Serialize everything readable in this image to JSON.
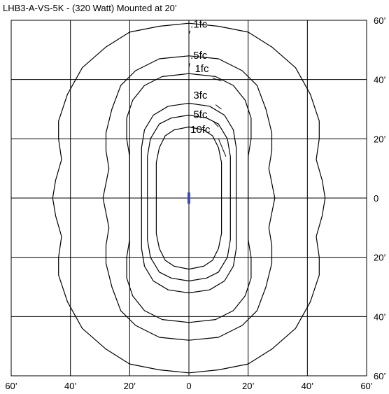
{
  "chart_data": {
    "type": "isofootcandle contour plot",
    "title": "LHB3-A-VS-5K - (320 Watt) Mounted at 20’",
    "x_ticks": [
      "60’",
      "40’",
      "20’",
      "0",
      "20’",
      "40’",
      "60’"
    ],
    "y_ticks": [
      "60’",
      "40’",
      "20’",
      "0",
      "20’",
      "40’",
      "60’"
    ],
    "xlim": [
      -60,
      60
    ],
    "ylim": [
      -60,
      60
    ],
    "grid": true,
    "contour_labels": [
      ".1fc",
      ".5fc",
      "1fc",
      "3fc",
      "5fc",
      "10fc"
    ],
    "contours": [
      {
        "label": ".1fc",
        "points": [
          [
            0,
            59
          ],
          [
            10,
            58
          ],
          [
            20,
            56
          ],
          [
            28,
            51
          ],
          [
            36,
            44
          ],
          [
            41,
            35
          ],
          [
            44,
            26
          ],
          [
            44,
            20
          ],
          [
            43,
            13
          ],
          [
            45,
            6
          ],
          [
            46,
            0
          ],
          [
            45,
            -6
          ],
          [
            43,
            -13
          ],
          [
            44,
            -20
          ],
          [
            44,
            -26
          ],
          [
            41,
            -35
          ],
          [
            36,
            -44
          ],
          [
            28,
            -51
          ],
          [
            20,
            -56
          ],
          [
            10,
            -58
          ],
          [
            0,
            -59
          ],
          [
            -10,
            -58
          ],
          [
            -20,
            -56
          ],
          [
            -28,
            -51
          ],
          [
            -36,
            -44
          ],
          [
            -41,
            -35
          ],
          [
            -44,
            -26
          ],
          [
            -44,
            -20
          ],
          [
            -43,
            -13
          ],
          [
            -45,
            -6
          ],
          [
            -46,
            0
          ],
          [
            -45,
            6
          ],
          [
            -43,
            13
          ],
          [
            -44,
            20
          ],
          [
            -44,
            26
          ],
          [
            -41,
            35
          ],
          [
            -36,
            44
          ],
          [
            -28,
            51
          ],
          [
            -20,
            56
          ],
          [
            -10,
            58
          ]
        ]
      },
      {
        "label": ".5fc",
        "points": [
          [
            0,
            48
          ],
          [
            10,
            47
          ],
          [
            18,
            43
          ],
          [
            23,
            38
          ],
          [
            26,
            30
          ],
          [
            28,
            22
          ],
          [
            28,
            16
          ],
          [
            27,
            10
          ],
          [
            28,
            5
          ],
          [
            29,
            0
          ],
          [
            28,
            -5
          ],
          [
            27,
            -10
          ],
          [
            28,
            -16
          ],
          [
            28,
            -22
          ],
          [
            26,
            -30
          ],
          [
            23,
            -38
          ],
          [
            18,
            -43
          ],
          [
            10,
            -47
          ],
          [
            0,
            -48
          ],
          [
            -10,
            -47
          ],
          [
            -18,
            -43
          ],
          [
            -23,
            -38
          ],
          [
            -26,
            -30
          ],
          [
            -28,
            -22
          ],
          [
            -28,
            -16
          ],
          [
            -27,
            -10
          ],
          [
            -28,
            -5
          ],
          [
            -29,
            0
          ],
          [
            -28,
            5
          ],
          [
            -27,
            10
          ],
          [
            -28,
            16
          ],
          [
            -28,
            22
          ],
          [
            -26,
            30
          ],
          [
            -23,
            38
          ],
          [
            -18,
            43
          ],
          [
            -10,
            47
          ]
        ]
      },
      {
        "label": "1fc",
        "points": [
          [
            0,
            42
          ],
          [
            9,
            41
          ],
          [
            15,
            38
          ],
          [
            19,
            33
          ],
          [
            21,
            27
          ],
          [
            21,
            20
          ],
          [
            20,
            14
          ],
          [
            20,
            8
          ],
          [
            20,
            0
          ],
          [
            20,
            -8
          ],
          [
            20,
            -14
          ],
          [
            21,
            -20
          ],
          [
            21,
            -27
          ],
          [
            19,
            -33
          ],
          [
            15,
            -38
          ],
          [
            9,
            -41
          ],
          [
            0,
            -42
          ],
          [
            -9,
            -41
          ],
          [
            -15,
            -38
          ],
          [
            -19,
            -33
          ],
          [
            -21,
            -27
          ],
          [
            -21,
            -20
          ],
          [
            -20,
            -14
          ],
          [
            -20,
            -8
          ],
          [
            -20,
            0
          ],
          [
            -20,
            8
          ],
          [
            -20,
            14
          ],
          [
            -21,
            20
          ],
          [
            -21,
            27
          ],
          [
            -19,
            33
          ],
          [
            -15,
            38
          ],
          [
            -9,
            41
          ]
        ]
      },
      {
        "label": "3fc",
        "points": [
          [
            0,
            32
          ],
          [
            7,
            31
          ],
          [
            12,
            28
          ],
          [
            15,
            23
          ],
          [
            16,
            17
          ],
          [
            16,
            10
          ],
          [
            16,
            0
          ],
          [
            16,
            -10
          ],
          [
            16,
            -17
          ],
          [
            15,
            -23
          ],
          [
            12,
            -28
          ],
          [
            7,
            -31
          ],
          [
            0,
            -32
          ],
          [
            -7,
            -31
          ],
          [
            -12,
            -28
          ],
          [
            -15,
            -23
          ],
          [
            -16,
            -17
          ],
          [
            -16,
            -10
          ],
          [
            -16,
            0
          ],
          [
            -16,
            10
          ],
          [
            -16,
            17
          ],
          [
            -15,
            23
          ],
          [
            -12,
            28
          ],
          [
            -7,
            31
          ]
        ]
      },
      {
        "label": "5fc",
        "points": [
          [
            0,
            28
          ],
          [
            6,
            27
          ],
          [
            10,
            25
          ],
          [
            13,
            20
          ],
          [
            14,
            14
          ],
          [
            14,
            8
          ],
          [
            14,
            0
          ],
          [
            14,
            -8
          ],
          [
            14,
            -14
          ],
          [
            13,
            -20
          ],
          [
            10,
            -25
          ],
          [
            6,
            -27
          ],
          [
            0,
            -28
          ],
          [
            -6,
            -27
          ],
          [
            -10,
            -25
          ],
          [
            -13,
            -20
          ],
          [
            -14,
            -14
          ],
          [
            -14,
            -8
          ],
          [
            -14,
            0
          ],
          [
            -14,
            8
          ],
          [
            -14,
            14
          ],
          [
            -13,
            20
          ],
          [
            -10,
            25
          ],
          [
            -6,
            27
          ]
        ]
      },
      {
        "label": "10fc",
        "points": [
          [
            0,
            24
          ],
          [
            5,
            23
          ],
          [
            8,
            21
          ],
          [
            10,
            17
          ],
          [
            11,
            12
          ],
          [
            11,
            6
          ],
          [
            11,
            0
          ],
          [
            11,
            -6
          ],
          [
            11,
            -12
          ],
          [
            10,
            -17
          ],
          [
            8,
            -21
          ],
          [
            5,
            -23
          ],
          [
            0,
            -24
          ],
          [
            -5,
            -23
          ],
          [
            -8,
            -21
          ],
          [
            -10,
            -17
          ],
          [
            -11,
            -12
          ],
          [
            -11,
            -6
          ],
          [
            -11,
            0
          ],
          [
            -11,
            6
          ],
          [
            -11,
            12
          ],
          [
            -10,
            17
          ],
          [
            -8,
            21
          ],
          [
            -5,
            23
          ]
        ]
      }
    ],
    "contour_label_positions": [
      {
        "label": ".1fc",
        "text_at": [
          0.5,
          57.5
        ],
        "leader": [
          [
            0.4,
            56.5
          ],
          [
            0.1,
            55.5
          ]
        ]
      },
      {
        "label": ".5fc",
        "text_at": [
          0.5,
          47.0
        ],
        "leader": [
          [
            0.3,
            45.5
          ],
          [
            0.0,
            44.0
          ]
        ]
      },
      {
        "label": "1fc",
        "text_at": [
          2.0,
          42.5
        ],
        "leader": [
          [
            8.0,
            40.5
          ],
          [
            11.0,
            39.5
          ]
        ]
      },
      {
        "label": "3fc",
        "text_at": [
          1.5,
          33.5
        ],
        "leader": [
          [
            9.0,
            31.5
          ],
          [
            11.0,
            30.0
          ]
        ]
      },
      {
        "label": "5fc",
        "text_at": [
          1.5,
          27.0
        ],
        "leader": [
          [
            8.5,
            25.5
          ],
          [
            10.0,
            24.0
          ]
        ]
      },
      {
        "label": "10fc",
        "text_at": [
          0.5,
          22.0
        ],
        "leader": [
          [
            10.0,
            20.0
          ],
          [
            12.5,
            14.0
          ]
        ]
      }
    ],
    "fixture_marker": {
      "x": 0,
      "y": 0,
      "color": "#3a4bbd"
    }
  }
}
